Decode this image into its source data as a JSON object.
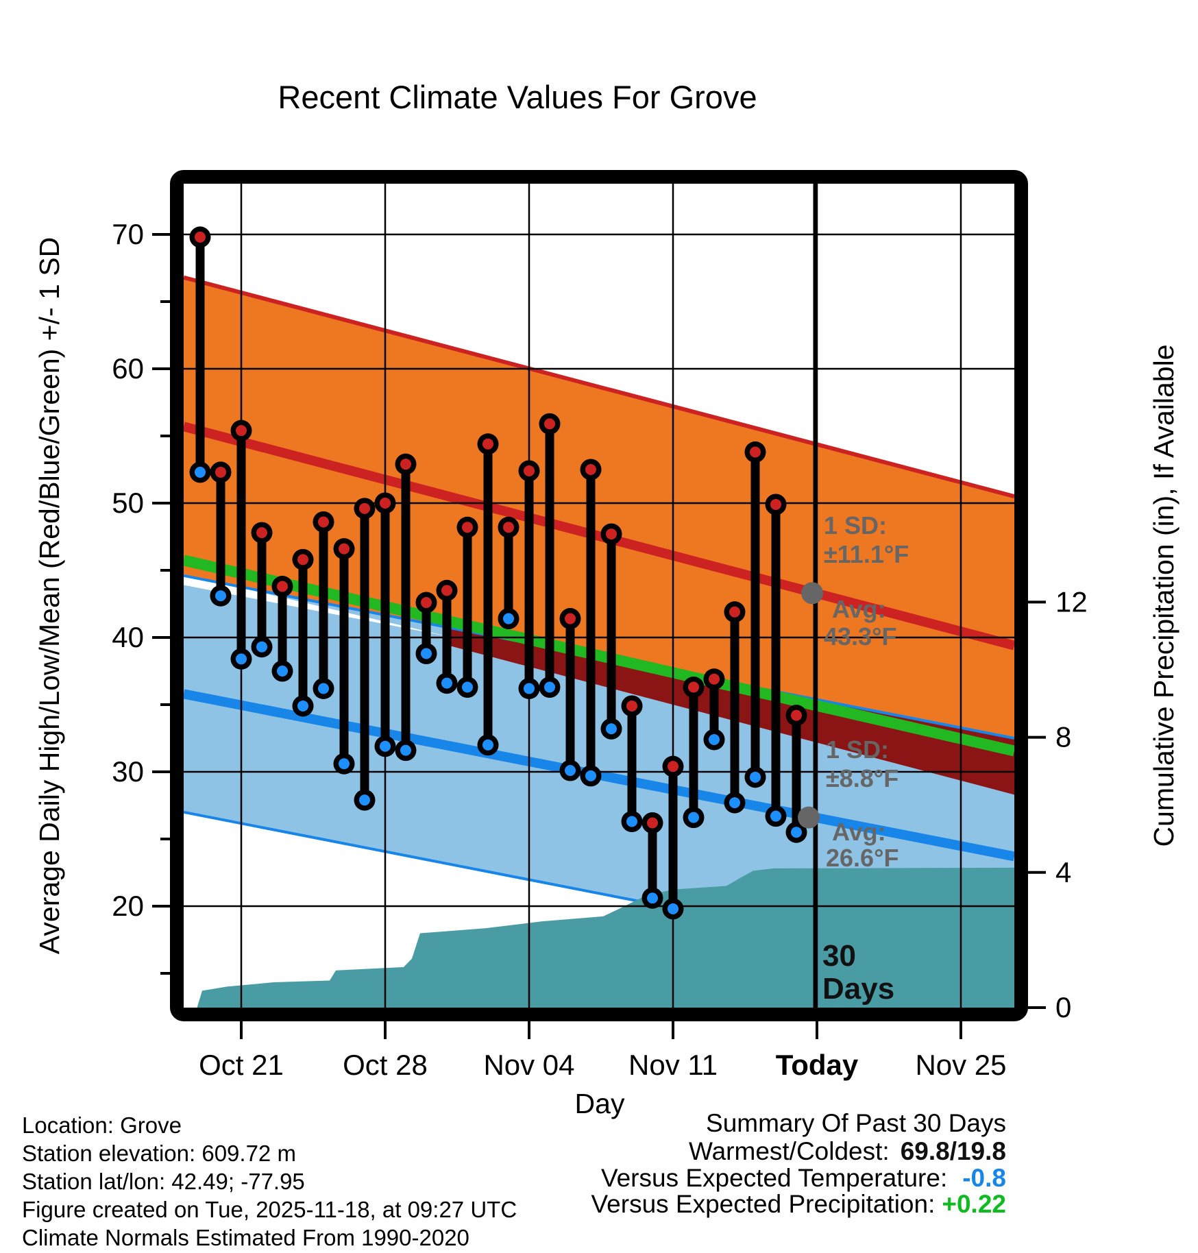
{
  "title": "Recent Climate Values For Grove",
  "axes": {
    "y_left_label": "Average Daily High/Low/Mean (Red/Blue/Green) +/- 1 SD",
    "y_right_label": "Cumulative Precipitation (in), If Available",
    "x_label": "Day",
    "x_ticks": [
      {
        "label": "Oct 21",
        "day": 2,
        "bold": false
      },
      {
        "label": "Oct 28",
        "day": 9,
        "bold": false
      },
      {
        "label": "Nov 04",
        "day": 16,
        "bold": false
      },
      {
        "label": "Nov 11",
        "day": 23,
        "bold": false
      },
      {
        "label": "Today",
        "day": 30,
        "bold": true
      },
      {
        "label": "Nov 25",
        "day": 37,
        "bold": false
      }
    ],
    "y_left_ticks": [
      70,
      60,
      50,
      40,
      30,
      20
    ],
    "y_left_minor_ticks": [
      65,
      55,
      45,
      35,
      25,
      15
    ],
    "y_right_ticks": [
      12,
      8,
      4,
      0
    ]
  },
  "annotations": {
    "sd_high_line1": "1 SD:",
    "sd_high_line2": "±11.1°F",
    "avg_high_line1": "Avg:",
    "avg_high_line2": "43.3°F",
    "avg_high_value": 43.3,
    "sd_low_line1": "1 SD:",
    "sd_low_line2": "±8.8°F",
    "avg_low_line1": "Avg:",
    "avg_low_line2": "26.6°F",
    "avg_low_value": 26.6,
    "period_line1": "30",
    "period_line2": "Days"
  },
  "footer": {
    "lines": [
      "Location: Grove",
      "Station elevation: 609.72 m",
      "Station lat/lon: 42.49; -77.95",
      "Figure created on Tue, 2025-11-18, at 09:27 UTC",
      "Climate Normals Estimated From 1990-2020"
    ]
  },
  "summary": {
    "title": "Summary Of Past 30 Days",
    "rows": [
      {
        "label": "Warmest/Coldest:",
        "value": "69.8/19.8",
        "value_color": "#111111"
      },
      {
        "label": "Versus Expected Temperature:",
        "value": "-0.8",
        "value_color": "#1786E8"
      },
      {
        "label": "Versus Expected Precipitation:",
        "value": "+0.22",
        "value_color": "#10BB22"
      }
    ]
  },
  "colors": {
    "high_band": "#EE7722",
    "high_band_edge": "#CC2222",
    "mean_high_line": "#CC2222",
    "low_band": "#8FC3E6",
    "low_band_edge": "#1786E8",
    "mean_low_line": "#1786E8",
    "overlap_band": "#8B1414",
    "mean_temp_line": "#22B822",
    "precip_area": "#4A9CA4",
    "high_dot": "#CC2222",
    "low_dot": "#1E8FFF",
    "annotation_gray": "#666666",
    "frame": "#000000"
  },
  "chart_data": {
    "type": "dumbbell+bands+area",
    "title": "Recent Climate Values For Grove",
    "xlabel": "Day",
    "ylabel_left": "Average Daily High/Low/Mean (Red/Blue/Green) +/- 1 SD",
    "ylabel_right": "Cumulative Precipitation (in), If Available",
    "temp_axis_range_f": [
      12.4,
      73.8
    ],
    "precip_axis_range_in": [
      0,
      24.4
    ],
    "grid": true,
    "dates": [
      "Oct 19",
      "Oct 20",
      "Oct 21",
      "Oct 22",
      "Oct 23",
      "Oct 24",
      "Oct 25",
      "Oct 26",
      "Oct 27",
      "Oct 28",
      "Oct 29",
      "Oct 30",
      "Oct 31",
      "Nov 01",
      "Nov 02",
      "Nov 03",
      "Nov 04",
      "Nov 05",
      "Nov 06",
      "Nov 07",
      "Nov 08",
      "Nov 09",
      "Nov 10",
      "Nov 11",
      "Nov 12",
      "Nov 13",
      "Nov 14",
      "Nov 15",
      "Nov 16",
      "Nov 17"
    ],
    "series": [
      {
        "name": "Daily High (°F)",
        "values": [
          69.8,
          52.3,
          55.4,
          47.8,
          43.8,
          45.8,
          48.6,
          46.6,
          49.6,
          50.0,
          52.9,
          42.6,
          43.5,
          48.2,
          54.4,
          48.2,
          52.4,
          55.9,
          41.4,
          52.5,
          47.7,
          34.9,
          26.2,
          30.4,
          36.3,
          36.9,
          41.9,
          53.8,
          49.9,
          34.2
        ]
      },
      {
        "name": "Daily Low (°F)",
        "values": [
          52.3,
          43.1,
          38.4,
          39.3,
          37.5,
          34.9,
          36.2,
          30.6,
          27.9,
          31.9,
          31.6,
          38.8,
          36.6,
          36.3,
          32.0,
          41.4,
          36.2,
          36.3,
          30.1,
          29.7,
          33.2,
          26.3,
          20.6,
          19.8,
          26.6,
          32.4,
          27.7,
          29.6,
          26.7,
          25.5
        ]
      }
    ],
    "normals": {
      "day_span": [
        -0.8,
        39.6
      ],
      "mean_high": [
        55.7,
        39.4
      ],
      "mean_low": [
        35.8,
        23.7
      ],
      "mean_avg": [
        45.75,
        31.55
      ],
      "sd_high": 11.1,
      "sd_low": 8.8,
      "overlap_from_day": 12,
      "white_gap": {
        "days": [
          -0.8,
          12,
          -0.8
        ],
        "temps": [
          44.7,
          40.1,
          43.9
        ]
      }
    },
    "precip_cumulative": {
      "units": "in",
      "final_total": 4.14,
      "points_day_in": [
        [
          -0.15,
          0
        ],
        [
          0.1,
          0.5
        ],
        [
          1.3,
          0.62
        ],
        [
          3.6,
          0.75
        ],
        [
          6.3,
          0.8
        ],
        [
          6.6,
          1.1
        ],
        [
          9.9,
          1.2
        ],
        [
          10.3,
          1.45
        ],
        [
          10.7,
          2.2
        ],
        [
          13.9,
          2.35
        ],
        [
          16.6,
          2.55
        ],
        [
          19.6,
          2.7
        ],
        [
          20.3,
          2.9
        ],
        [
          21.8,
          3.35
        ],
        [
          23.1,
          3.5
        ],
        [
          25.6,
          3.6
        ],
        [
          26.3,
          3.85
        ],
        [
          26.9,
          4.05
        ],
        [
          27.9,
          4.12
        ],
        [
          39.6,
          4.14
        ]
      ]
    },
    "today_day": 29.9,
    "avg_dots": [
      {
        "name": "avg-high-marker",
        "day": 29.77,
        "temp": 43.3
      },
      {
        "name": "avg-low-marker",
        "day": 29.6,
        "temp": 26.6
      }
    ],
    "summary": {
      "warmest": 69.8,
      "coldest": 19.8,
      "vs_expected_temp": -0.8,
      "vs_expected_precip": 0.22
    }
  }
}
